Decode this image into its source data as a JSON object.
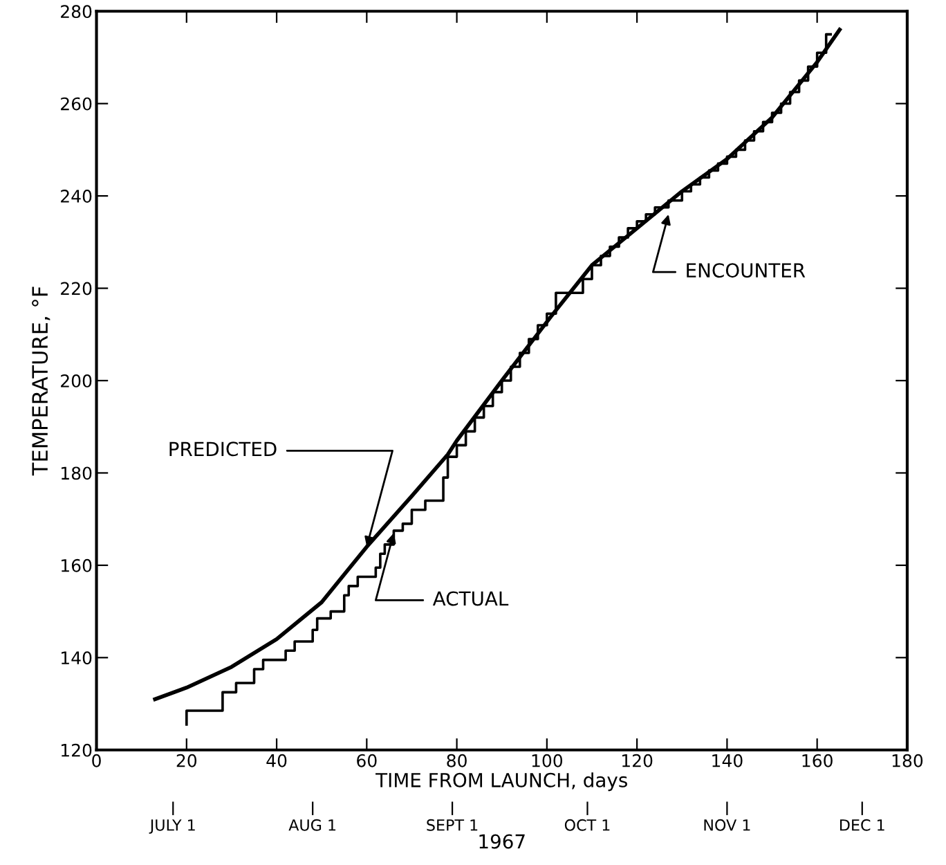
{
  "chart_data": {
    "type": "line",
    "xlabel": "TIME FROM LAUNCH, days",
    "ylabel": "TEMPERATURE, °F",
    "x2label": "1967",
    "xlim": [
      0,
      180
    ],
    "xticks": [
      0,
      20,
      40,
      60,
      80,
      100,
      120,
      140,
      160,
      180
    ],
    "ylim": [
      120,
      280
    ],
    "yticks": [
      120,
      140,
      160,
      180,
      200,
      220,
      240,
      260,
      280
    ],
    "x2lim": [
      "1967-06-14",
      "1967-12-11"
    ],
    "x2ticks": [
      {
        "value": "1967-07-01",
        "label": "JULY 1"
      },
      {
        "value": "1967-08-01",
        "label": "AUG 1"
      },
      {
        "value": "1967-09-01",
        "label": "SEPT 1"
      },
      {
        "value": "1967-10-01",
        "label": "OCT 1"
      },
      {
        "value": "1967-11-01",
        "label": "NOV 1"
      },
      {
        "value": "1967-12-01",
        "label": "DEC 1"
      }
    ],
    "grid": false,
    "marker": "none",
    "series": [
      {
        "color": "#000000",
        "line_style": "solid",
        "x": [
          13,
          20,
          30,
          40,
          50,
          60,
          70,
          78,
          80,
          90,
          101,
          110,
          120,
          125,
          130,
          140,
          150,
          160,
          165
        ],
        "values": [
          131,
          133.5,
          138,
          144,
          152,
          164,
          175,
          184,
          187,
          200,
          214,
          225,
          233,
          237,
          241,
          248,
          257,
          269,
          276
        ]
      },
      {
        "type": "step",
        "color": "#000000",
        "line_style": "solid",
        "x": [
          20,
          20,
          28,
          31,
          35,
          37,
          42,
          44,
          48,
          49,
          52,
          55,
          56,
          58,
          62,
          63,
          64,
          66,
          68,
          70,
          73,
          77,
          78,
          80,
          82,
          84,
          86,
          88,
          90,
          92,
          94,
          96,
          98,
          100,
          102,
          108,
          110,
          112,
          114,
          116,
          118,
          120,
          122,
          124,
          127,
          130,
          132,
          134,
          136,
          138,
          140,
          142,
          144,
          146,
          148,
          150,
          152,
          154,
          156,
          158,
          160,
          162,
          163
        ],
        "values": [
          125.5,
          128.5,
          132.5,
          134.5,
          137.5,
          139.5,
          141.5,
          143.5,
          146,
          148.5,
          150,
          153.5,
          155.5,
          157.5,
          159.5,
          162.5,
          164.5,
          167.5,
          169,
          172,
          174,
          179,
          183.5,
          186,
          189,
          192,
          194.5,
          197.5,
          200,
          203,
          206,
          209,
          212,
          214.5,
          219,
          222,
          225,
          227,
          229,
          231,
          233,
          234.5,
          236,
          237.5,
          239,
          241,
          242.5,
          244,
          245.5,
          247,
          248.5,
          250,
          252,
          254,
          256,
          258,
          260,
          262.5,
          265,
          268,
          271,
          275,
          275
        ]
      }
    ],
    "annotations": [
      {
        "text": "PREDICTED",
        "x": 60,
        "y": 164
      },
      {
        "text": "ACTUAL",
        "x": 66,
        "y": 167
      },
      {
        "text": "ENCOUNTER",
        "x": 127,
        "y": 236
      }
    ]
  }
}
